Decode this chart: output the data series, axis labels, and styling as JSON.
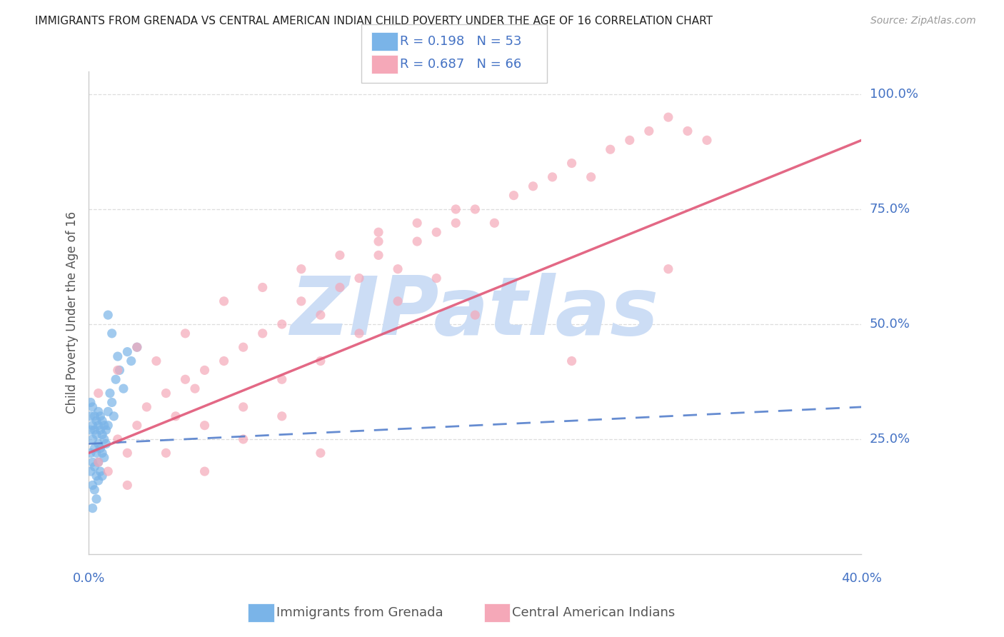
{
  "title": "IMMIGRANTS FROM GRENADA VS CENTRAL AMERICAN INDIAN CHILD POVERTY UNDER THE AGE OF 16 CORRELATION CHART",
  "source": "Source: ZipAtlas.com",
  "ylabel": "Child Poverty Under the Age of 16",
  "xlim": [
    0.0,
    0.4
  ],
  "ylim": [
    0.0,
    1.05
  ],
  "y_ticks": [
    0.0,
    0.25,
    0.5,
    0.75,
    1.0
  ],
  "y_tick_labels": [
    "",
    "25.0%",
    "50.0%",
    "75.0%",
    "100.0%"
  ],
  "R_blue": 0.198,
  "N_blue": 53,
  "R_pink": 0.687,
  "N_pink": 66,
  "legend_label_blue": "Immigrants from Grenada",
  "legend_label_pink": "Central American Indians",
  "blue_color": "#7ab4e8",
  "pink_color": "#f5a8b8",
  "trend_blue_color": "#5580cc",
  "trend_pink_color": "#e05878",
  "watermark": "ZIPatlas",
  "watermark_color": "#ccddf5",
  "background_color": "#ffffff",
  "title_color": "#222222",
  "axis_label_color": "#4472c4",
  "grid_color": "#dddddd",
  "blue_scatter_x": [
    0.001,
    0.001,
    0.001,
    0.001,
    0.001,
    0.002,
    0.002,
    0.002,
    0.002,
    0.002,
    0.002,
    0.003,
    0.003,
    0.003,
    0.003,
    0.003,
    0.004,
    0.004,
    0.004,
    0.004,
    0.004,
    0.005,
    0.005,
    0.005,
    0.005,
    0.005,
    0.006,
    0.006,
    0.006,
    0.006,
    0.007,
    0.007,
    0.007,
    0.007,
    0.008,
    0.008,
    0.008,
    0.009,
    0.009,
    0.01,
    0.01,
    0.011,
    0.012,
    0.013,
    0.014,
    0.015,
    0.016,
    0.018,
    0.02,
    0.022,
    0.025,
    0.012,
    0.01
  ],
  "blue_scatter_y": [
    0.27,
    0.3,
    0.33,
    0.22,
    0.18,
    0.28,
    0.32,
    0.25,
    0.2,
    0.15,
    0.1,
    0.3,
    0.27,
    0.23,
    0.19,
    0.14,
    0.29,
    0.26,
    0.22,
    0.17,
    0.12,
    0.31,
    0.28,
    0.24,
    0.2,
    0.16,
    0.3,
    0.27,
    0.23,
    0.18,
    0.29,
    0.26,
    0.22,
    0.17,
    0.28,
    0.25,
    0.21,
    0.27,
    0.24,
    0.31,
    0.28,
    0.35,
    0.33,
    0.3,
    0.38,
    0.43,
    0.4,
    0.36,
    0.44,
    0.42,
    0.45,
    0.48,
    0.52
  ],
  "pink_scatter_x": [
    0.005,
    0.01,
    0.015,
    0.02,
    0.025,
    0.03,
    0.04,
    0.045,
    0.05,
    0.055,
    0.06,
    0.07,
    0.08,
    0.09,
    0.1,
    0.11,
    0.12,
    0.13,
    0.14,
    0.15,
    0.16,
    0.17,
    0.18,
    0.19,
    0.2,
    0.21,
    0.22,
    0.23,
    0.24,
    0.25,
    0.26,
    0.27,
    0.28,
    0.29,
    0.3,
    0.31,
    0.32,
    0.005,
    0.015,
    0.025,
    0.035,
    0.05,
    0.07,
    0.09,
    0.11,
    0.13,
    0.15,
    0.17,
    0.19,
    0.06,
    0.08,
    0.1,
    0.12,
    0.14,
    0.16,
    0.18,
    0.02,
    0.04,
    0.06,
    0.08,
    0.1,
    0.12,
    0.15,
    0.2,
    0.25,
    0.3
  ],
  "pink_scatter_y": [
    0.2,
    0.18,
    0.25,
    0.22,
    0.28,
    0.32,
    0.35,
    0.3,
    0.38,
    0.36,
    0.4,
    0.42,
    0.45,
    0.48,
    0.5,
    0.55,
    0.52,
    0.58,
    0.6,
    0.65,
    0.62,
    0.68,
    0.7,
    0.72,
    0.75,
    0.72,
    0.78,
    0.8,
    0.82,
    0.85,
    0.82,
    0.88,
    0.9,
    0.92,
    0.95,
    0.92,
    0.9,
    0.35,
    0.4,
    0.45,
    0.42,
    0.48,
    0.55,
    0.58,
    0.62,
    0.65,
    0.7,
    0.72,
    0.75,
    0.28,
    0.32,
    0.38,
    0.42,
    0.48,
    0.55,
    0.6,
    0.15,
    0.22,
    0.18,
    0.25,
    0.3,
    0.22,
    0.68,
    0.52,
    0.42,
    0.62
  ],
  "trend_blue_x0": 0.0,
  "trend_blue_x1": 0.4,
  "trend_blue_y0": 0.24,
  "trend_blue_y1": 0.32,
  "trend_pink_x0": 0.0,
  "trend_pink_x1": 0.4,
  "trend_pink_y0": 0.22,
  "trend_pink_y1": 0.9
}
